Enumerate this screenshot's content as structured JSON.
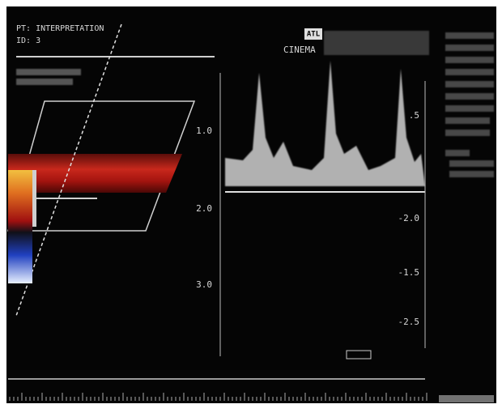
{
  "header": {
    "patient": "PT: INTERPRETATION",
    "id": "ID: 3"
  },
  "logo": "ATL",
  "mode": "CINEMA",
  "depth_scale": [
    "1.0",
    "2.0",
    "3.0"
  ],
  "velocity_scale": [
    ".5",
    "-2.0",
    "-1.5",
    "-2.5"
  ]
}
